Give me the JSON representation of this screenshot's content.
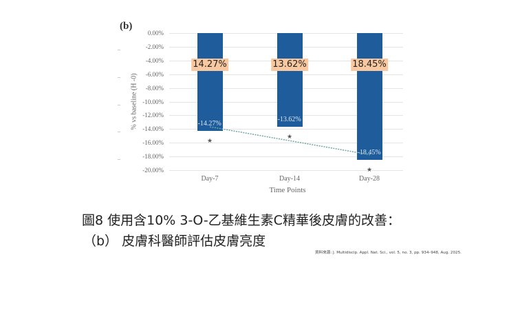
{
  "chart_data": {
    "type": "bar",
    "panel_label": "(b)",
    "title": "",
    "xlabel": "Time Points",
    "ylabel": "% vs baseline (H -0)",
    "ylim": [
      -20,
      0
    ],
    "yticks": [
      "0.00%",
      "-2.00%",
      "-4.00%",
      "-6.00%",
      "-8.00%",
      "-10.00%",
      "-12.00%",
      "-14.00%",
      "-16.00%",
      "-18.00%",
      "-20.00%"
    ],
    "categories": [
      "Day-7",
      "Day-14",
      "Day-28"
    ],
    "values": [
      -14.27,
      -13.62,
      -18.45
    ],
    "bar_labels": [
      "-14.27%",
      "-13.62%",
      "-18.45%"
    ],
    "highlight_labels": [
      "14.27%",
      "13.62%",
      "18.45%"
    ],
    "significance_markers": [
      "*",
      "*",
      "*"
    ],
    "trendline": "linear dotted",
    "grid": true,
    "bar_color": "#1f5c9b",
    "highlight_color": "#f8c9a0"
  },
  "caption": {
    "line1": "圖8 使用含10% 3-O-乙基維生素C精華後皮膚的改善：",
    "line2": "（b） 皮膚科醫師評估皮膚亮度"
  },
  "source": "資料來源: J. Multidiscip. Appl. Nat. Sci., vol. 5, no. 3, pp. 934–948, Aug. 2025."
}
